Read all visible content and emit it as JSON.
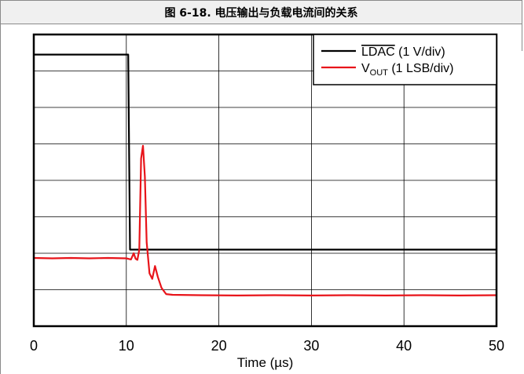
{
  "figure": {
    "caption": "图 6-18. 电压输出与负载电流间的关系"
  },
  "chart_data": {
    "type": "line",
    "title": "",
    "xlabel": "Time (µs)",
    "ylabel": "",
    "xlim": [
      0,
      50
    ],
    "ylim": [
      0,
      8
    ],
    "x_ticks": [
      "0",
      "10",
      "20",
      "30",
      "40",
      "50"
    ],
    "grid": true,
    "legend_position": "top-right",
    "series": [
      {
        "name": "LDAC (1 V/div)",
        "name_main": "LDAC",
        "name_suffix": " (1 V/div)",
        "name_overline": true,
        "color": "#000000",
        "points": [
          [
            0,
            7.45
          ],
          [
            10.2,
            7.45
          ],
          [
            10.4,
            2.1
          ],
          [
            50,
            2.1
          ]
        ]
      },
      {
        "name": "VOUT (1 LSB/div)",
        "name_main": "V",
        "name_sub": "OUT",
        "name_suffix": " (1 LSB/div)",
        "color": "#e8141a",
        "points": [
          [
            0,
            1.87
          ],
          [
            2,
            1.86
          ],
          [
            4,
            1.87
          ],
          [
            6,
            1.86
          ],
          [
            8,
            1.87
          ],
          [
            10,
            1.86
          ],
          [
            10.5,
            1.83
          ],
          [
            10.8,
            2.0
          ],
          [
            11.0,
            1.85
          ],
          [
            11.2,
            1.82
          ],
          [
            11.4,
            2.1
          ],
          [
            11.6,
            4.6
          ],
          [
            11.8,
            4.95
          ],
          [
            12.0,
            4.1
          ],
          [
            12.2,
            2.3
          ],
          [
            12.5,
            1.45
          ],
          [
            12.8,
            1.3
          ],
          [
            13.1,
            1.65
          ],
          [
            13.4,
            1.35
          ],
          [
            13.8,
            1.05
          ],
          [
            14.3,
            0.88
          ],
          [
            15,
            0.86
          ],
          [
            18,
            0.85
          ],
          [
            22,
            0.84
          ],
          [
            26,
            0.85
          ],
          [
            30,
            0.84
          ],
          [
            34,
            0.85
          ],
          [
            38,
            0.84
          ],
          [
            42,
            0.85
          ],
          [
            46,
            0.84
          ],
          [
            50,
            0.85
          ]
        ]
      }
    ]
  }
}
